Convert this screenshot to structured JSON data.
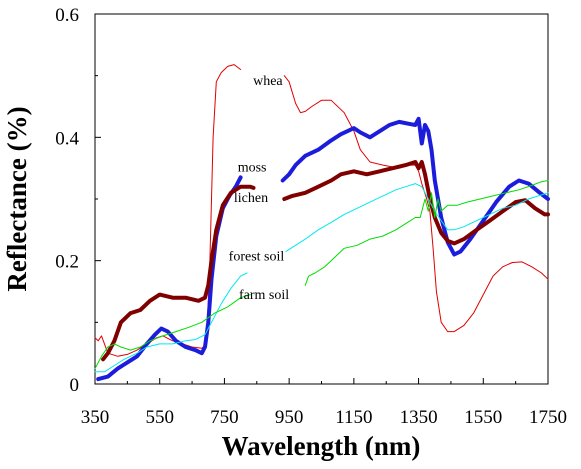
{
  "chart_data": {
    "type": "line",
    "title": "",
    "xlabel": "Wavelength (nm)",
    "ylabel": "Reflectance (%)",
    "xlim": [
      350,
      1750
    ],
    "ylim": [
      0,
      0.6
    ],
    "x_ticks": [
      350,
      550,
      750,
      950,
      1150,
      1350,
      1550,
      1750
    ],
    "y_ticks": [
      0,
      0.2,
      0.4,
      0.6
    ],
    "y_tick_labels": [
      "0",
      "0.2",
      "0.4",
      "0.6"
    ],
    "grid": false,
    "legend": "none",
    "series": [
      {
        "name": "whea",
        "color": "#e00000",
        "width": 1,
        "label_at": [
          930,
          0.485
        ],
        "segments": [
          [
            [
              350,
              0.075
            ],
            [
              360,
              0.07
            ],
            [
              370,
              0.078
            ],
            [
              390,
              0.05
            ],
            [
              420,
              0.045
            ],
            [
              450,
              0.048
            ],
            [
              480,
              0.055
            ],
            [
              510,
              0.065
            ],
            [
              540,
              0.075
            ],
            [
              560,
              0.078
            ],
            [
              590,
              0.07
            ],
            [
              620,
              0.065
            ],
            [
              650,
              0.06
            ],
            [
              680,
              0.058
            ],
            [
              695,
              0.065
            ],
            [
              705,
              0.2
            ],
            [
              715,
              0.4
            ],
            [
              725,
              0.49
            ],
            [
              740,
              0.505
            ],
            [
              760,
              0.515
            ],
            [
              780,
              0.518
            ],
            [
              800,
              0.51
            ]
          ],
          [
            [
              935,
              0.5
            ],
            [
              950,
              0.49
            ],
            [
              970,
              0.455
            ],
            [
              985,
              0.44
            ],
            [
              1000,
              0.442
            ],
            [
              1020,
              0.45
            ],
            [
              1050,
              0.46
            ],
            [
              1080,
              0.46
            ],
            [
              1120,
              0.44
            ],
            [
              1150,
              0.41
            ],
            [
              1170,
              0.38
            ],
            [
              1200,
              0.36
            ],
            [
              1240,
              0.355
            ],
            [
              1290,
              0.35
            ],
            [
              1320,
              0.355
            ],
            [
              1340,
              0.355
            ],
            [
              1350,
              0.345
            ],
            [
              1360,
              0.325
            ],
            [
              1375,
              0.3
            ],
            [
              1385,
              0.28
            ],
            [
              1395,
              0.22
            ],
            [
              1405,
              0.15
            ],
            [
              1420,
              0.1
            ],
            [
              1440,
              0.085
            ],
            [
              1460,
              0.085
            ],
            [
              1490,
              0.095
            ],
            [
              1520,
              0.115
            ],
            [
              1550,
              0.145
            ],
            [
              1580,
              0.175
            ],
            [
              1610,
              0.19
            ],
            [
              1640,
              0.197
            ],
            [
              1670,
              0.198
            ],
            [
              1700,
              0.19
            ],
            [
              1730,
              0.18
            ],
            [
              1750,
              0.17
            ]
          ]
        ]
      },
      {
        "name": "moss",
        "color": "#1c1cdc",
        "width": 4,
        "label_at": [
          880,
          0.345
        ],
        "segments": [
          [
            [
              360,
              0.008
            ],
            [
              390,
              0.012
            ],
            [
              420,
              0.025
            ],
            [
              450,
              0.035
            ],
            [
              480,
              0.045
            ],
            [
              510,
              0.065
            ],
            [
              535,
              0.08
            ],
            [
              555,
              0.09
            ],
            [
              575,
              0.085
            ],
            [
              600,
              0.07
            ],
            [
              630,
              0.06
            ],
            [
              660,
              0.055
            ],
            [
              680,
              0.05
            ],
            [
              690,
              0.06
            ],
            [
              700,
              0.1
            ],
            [
              710,
              0.17
            ],
            [
              725,
              0.24
            ],
            [
              745,
              0.285
            ],
            [
              765,
              0.305
            ],
            [
              785,
              0.32
            ],
            [
              800,
              0.335
            ]
          ],
          [
            [
              930,
              0.33
            ],
            [
              950,
              0.34
            ],
            [
              970,
              0.355
            ],
            [
              1000,
              0.37
            ],
            [
              1040,
              0.38
            ],
            [
              1080,
              0.395
            ],
            [
              1110,
              0.405
            ],
            [
              1130,
              0.41
            ],
            [
              1150,
              0.415
            ],
            [
              1170,
              0.408
            ],
            [
              1200,
              0.4
            ],
            [
              1230,
              0.41
            ],
            [
              1260,
              0.42
            ],
            [
              1290,
              0.425
            ],
            [
              1320,
              0.422
            ],
            [
              1340,
              0.42
            ],
            [
              1350,
              0.43
            ],
            [
              1360,
              0.39
            ],
            [
              1370,
              0.42
            ],
            [
              1380,
              0.41
            ],
            [
              1390,
              0.38
            ],
            [
              1400,
              0.33
            ],
            [
              1420,
              0.27
            ],
            [
              1440,
              0.23
            ],
            [
              1460,
              0.21
            ],
            [
              1480,
              0.215
            ],
            [
              1510,
              0.235
            ],
            [
              1550,
              0.265
            ],
            [
              1590,
              0.295
            ],
            [
              1630,
              0.32
            ],
            [
              1660,
              0.33
            ],
            [
              1690,
              0.325
            ],
            [
              1720,
              0.312
            ],
            [
              1750,
              0.3
            ]
          ]
        ]
      },
      {
        "name": "lichen",
        "color": "#800000",
        "width": 4,
        "label_at": [
          885,
          0.295
        ],
        "segments": [
          [
            [
              375,
              0.04
            ],
            [
              390,
              0.05
            ],
            [
              410,
              0.07
            ],
            [
              430,
              0.1
            ],
            [
              460,
              0.115
            ],
            [
              490,
              0.12
            ],
            [
              520,
              0.135
            ],
            [
              550,
              0.145
            ],
            [
              590,
              0.14
            ],
            [
              630,
              0.14
            ],
            [
              670,
              0.135
            ],
            [
              690,
              0.14
            ],
            [
              700,
              0.16
            ],
            [
              710,
              0.2
            ],
            [
              725,
              0.25
            ],
            [
              745,
              0.29
            ],
            [
              770,
              0.31
            ],
            [
              800,
              0.32
            ],
            [
              830,
              0.32
            ],
            [
              840,
              0.318
            ]
          ],
          [
            [
              935,
              0.3
            ],
            [
              960,
              0.305
            ],
            [
              1000,
              0.31
            ],
            [
              1040,
              0.32
            ],
            [
              1080,
              0.33
            ],
            [
              1110,
              0.34
            ],
            [
              1150,
              0.345
            ],
            [
              1190,
              0.34
            ],
            [
              1230,
              0.345
            ],
            [
              1270,
              0.35
            ],
            [
              1310,
              0.355
            ],
            [
              1340,
              0.36
            ],
            [
              1350,
              0.35
            ],
            [
              1360,
              0.36
            ],
            [
              1370,
              0.34
            ],
            [
              1385,
              0.3
            ],
            [
              1400,
              0.27
            ],
            [
              1420,
              0.245
            ],
            [
              1440,
              0.232
            ],
            [
              1460,
              0.228
            ],
            [
              1490,
              0.235
            ],
            [
              1530,
              0.25
            ],
            [
              1570,
              0.265
            ],
            [
              1610,
              0.28
            ],
            [
              1650,
              0.295
            ],
            [
              1680,
              0.298
            ],
            [
              1710,
              0.285
            ],
            [
              1740,
              0.275
            ],
            [
              1750,
              0.275
            ]
          ]
        ]
      },
      {
        "name": "forest soil",
        "color": "#00e8f0",
        "width": 1,
        "label_at": [
          935,
          0.2
        ],
        "segments": [
          [
            [
              350,
              0.02
            ],
            [
              380,
              0.02
            ],
            [
              410,
              0.03
            ],
            [
              440,
              0.04
            ],
            [
              480,
              0.05
            ],
            [
              510,
              0.06
            ],
            [
              550,
              0.065
            ],
            [
              590,
              0.065
            ],
            [
              630,
              0.07
            ],
            [
              660,
              0.072
            ],
            [
              690,
              0.08
            ],
            [
              710,
              0.1
            ],
            [
              740,
              0.13
            ],
            [
              770,
              0.155
            ],
            [
              800,
              0.175
            ],
            [
              820,
              0.18
            ]
          ],
          [
            [
              940,
              0.215
            ],
            [
              970,
              0.225
            ],
            [
              1000,
              0.235
            ],
            [
              1040,
              0.25
            ],
            [
              1080,
              0.262
            ],
            [
              1120,
              0.275
            ],
            [
              1160,
              0.285
            ],
            [
              1200,
              0.295
            ],
            [
              1240,
              0.305
            ],
            [
              1280,
              0.315
            ],
            [
              1310,
              0.32
            ],
            [
              1340,
              0.325
            ],
            [
              1360,
              0.32
            ],
            [
              1380,
              0.3
            ],
            [
              1400,
              0.28
            ],
            [
              1420,
              0.265
            ],
            [
              1440,
              0.25
            ],
            [
              1460,
              0.25
            ],
            [
              1490,
              0.255
            ],
            [
              1530,
              0.265
            ],
            [
              1570,
              0.275
            ],
            [
              1610,
              0.285
            ],
            [
              1650,
              0.29
            ],
            [
              1690,
              0.3
            ],
            [
              1720,
              0.305
            ],
            [
              1750,
              0.31
            ]
          ]
        ]
      },
      {
        "name": "farm soil",
        "color": "#00dd00",
        "width": 1,
        "label_at": [
          950,
          0.138
        ],
        "segments": [
          [
            [
              350,
              0.025
            ],
            [
              370,
              0.045
            ],
            [
              390,
              0.06
            ],
            [
              410,
              0.065
            ],
            [
              430,
              0.06
            ],
            [
              460,
              0.055
            ],
            [
              490,
              0.06
            ],
            [
              520,
              0.07
            ],
            [
              560,
              0.078
            ],
            [
              600,
              0.085
            ],
            [
              640,
              0.092
            ],
            [
              680,
              0.1
            ],
            [
              720,
              0.115
            ],
            [
              760,
              0.125
            ],
            [
              800,
              0.14
            ],
            [
              830,
              0.145
            ]
          ],
          [
            [
              1000,
              0.16
            ],
            [
              1010,
              0.175
            ],
            [
              1030,
              0.18
            ],
            [
              1060,
              0.19
            ],
            [
              1090,
              0.205
            ],
            [
              1120,
              0.22
            ],
            [
              1160,
              0.225
            ],
            [
              1200,
              0.235
            ],
            [
              1240,
              0.24
            ],
            [
              1280,
              0.25
            ],
            [
              1310,
              0.26
            ],
            [
              1340,
              0.27
            ],
            [
              1355,
              0.27
            ],
            [
              1370,
              0.3
            ],
            [
              1380,
              0.28
            ],
            [
              1390,
              0.31
            ],
            [
              1400,
              0.27
            ],
            [
              1410,
              0.3
            ],
            [
              1420,
              0.28
            ],
            [
              1440,
              0.29
            ],
            [
              1470,
              0.29
            ],
            [
              1500,
              0.295
            ],
            [
              1540,
              0.3
            ],
            [
              1580,
              0.305
            ],
            [
              1620,
              0.31
            ],
            [
              1660,
              0.315
            ],
            [
              1700,
              0.322
            ],
            [
              1730,
              0.328
            ],
            [
              1750,
              0.33
            ]
          ]
        ]
      }
    ]
  }
}
